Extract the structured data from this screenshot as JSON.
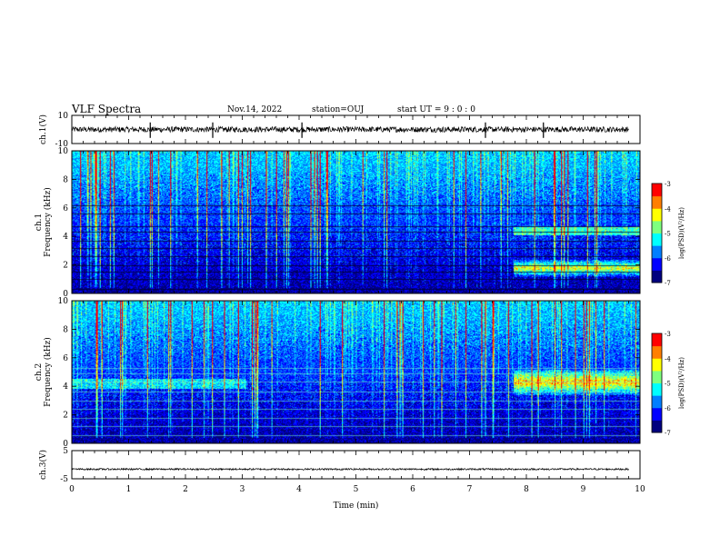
{
  "header": {
    "title": "VLF Spectra",
    "date": "Nov.14, 2022",
    "station": "station=OUJ",
    "start_ut": "start  UT =   9 : 0  : 0"
  },
  "chart_data": [
    {
      "type": "line",
      "name": "waveform-ch1",
      "ylabel": "ch.1(V)",
      "ylim": [
        -10,
        10
      ],
      "yticks": [
        "10",
        "-10"
      ],
      "xlim": [
        0,
        10
      ],
      "signal": {
        "x_end_min": 9.8,
        "baseline_v": 0,
        "noise_amplitude_v": 2,
        "spikes_min": [
          1.38,
          2.48,
          4.05,
          7.28,
          8.3
        ]
      }
    },
    {
      "type": "heatmap",
      "name": "spectrogram-ch1",
      "ylabel": "ch.1\nFrequency (kHz)",
      "ylim": [
        0,
        10
      ],
      "yticks": [
        "0",
        "2",
        "4",
        "6",
        "8",
        "10"
      ],
      "xlim": [
        0,
        10
      ],
      "colorbar": {
        "label": "log(PSD)(V²/Hz)",
        "range": [
          -7,
          -3
        ],
        "ticks": [
          "-3",
          "-4",
          "-5",
          "-6",
          "-7"
        ]
      }
    },
    {
      "type": "heatmap",
      "name": "spectrogram-ch2",
      "ylabel": "ch.2\nFrequency (kHz)",
      "ylim": [
        0,
        10
      ],
      "yticks": [
        "0",
        "2",
        "4",
        "6",
        "8",
        "10"
      ],
      "xlim": [
        0,
        10
      ],
      "colorbar": {
        "label": "log(PSD)(V²/Hz)",
        "range": [
          -7,
          -3
        ],
        "ticks": [
          "-3",
          "-4",
          "-5",
          "-6",
          "-7"
        ]
      }
    },
    {
      "type": "line",
      "name": "waveform-ch3",
      "ylabel": "ch.3(V)",
      "ylim": [
        -5,
        5
      ],
      "yticks": [
        "5",
        "-5"
      ],
      "xlim": [
        0,
        10
      ],
      "signal": {
        "x_end_min": 9.8,
        "baseline_v": -1.6,
        "noise_amplitude_v": 0.3
      }
    }
  ],
  "xaxis": {
    "label": "Time (min)",
    "ticks": [
      "0",
      "1",
      "2",
      "3",
      "4",
      "5",
      "6",
      "7",
      "8",
      "9",
      "10"
    ],
    "range": [
      0,
      10
    ]
  },
  "colormap": [
    "#00007f",
    "#0000ff",
    "#007fff",
    "#00ffff",
    "#7fff7f",
    "#ffff00",
    "#ff7f00",
    "#ff0000",
    "#ffffff"
  ]
}
